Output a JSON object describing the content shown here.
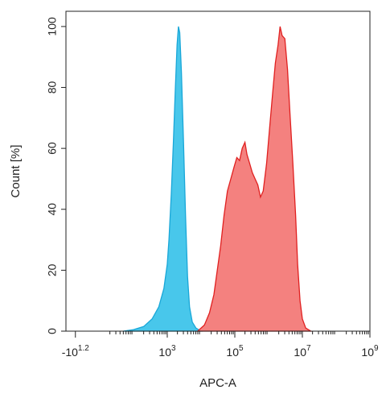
{
  "chart_data": {
    "type": "area",
    "xlabel": "APC-A",
    "ylabel": "Count [%]",
    "xscale": "log",
    "xlim_log10": [
      0,
      9
    ],
    "ylim": [
      0,
      105
    ],
    "grid": false,
    "x_ticks": [
      {
        "base": "-10",
        "exp": "1.2",
        "log10": 0.28
      },
      {
        "base": "10",
        "exp": "3",
        "log10": 3
      },
      {
        "base": "10",
        "exp": "5",
        "log10": 5
      },
      {
        "base": "10",
        "exp": "7",
        "log10": 7
      },
      {
        "base": "10",
        "exp": "9",
        "log10": 9
      }
    ],
    "y_ticks": [
      0,
      20,
      40,
      60,
      80,
      100
    ],
    "series": [
      {
        "fill": "#3ec4ea",
        "stroke": "#19a7d8",
        "points_log10": [
          [
            1.7,
            0
          ],
          [
            2.0,
            0.5
          ],
          [
            2.3,
            1.5
          ],
          [
            2.55,
            4
          ],
          [
            2.75,
            8
          ],
          [
            2.9,
            14
          ],
          [
            3.0,
            22
          ],
          [
            3.05,
            30
          ],
          [
            3.12,
            45
          ],
          [
            3.18,
            62
          ],
          [
            3.24,
            80
          ],
          [
            3.29,
            94
          ],
          [
            3.33,
            100
          ],
          [
            3.37,
            98
          ],
          [
            3.42,
            85
          ],
          [
            3.48,
            62
          ],
          [
            3.54,
            38
          ],
          [
            3.6,
            18
          ],
          [
            3.66,
            8
          ],
          [
            3.74,
            3
          ],
          [
            3.85,
            1
          ],
          [
            4.0,
            0
          ]
        ]
      },
      {
        "fill": "#f37a78",
        "stroke": "#e02020",
        "points_log10": [
          [
            3.9,
            0
          ],
          [
            4.1,
            2
          ],
          [
            4.25,
            6
          ],
          [
            4.38,
            12
          ],
          [
            4.48,
            20
          ],
          [
            4.58,
            28
          ],
          [
            4.68,
            38
          ],
          [
            4.78,
            46
          ],
          [
            4.88,
            50
          ],
          [
            4.98,
            54
          ],
          [
            5.06,
            57
          ],
          [
            5.14,
            56
          ],
          [
            5.22,
            60
          ],
          [
            5.3,
            62
          ],
          [
            5.36,
            58
          ],
          [
            5.44,
            55
          ],
          [
            5.52,
            52
          ],
          [
            5.6,
            50
          ],
          [
            5.68,
            48
          ],
          [
            5.76,
            44
          ],
          [
            5.84,
            46
          ],
          [
            5.94,
            55
          ],
          [
            6.04,
            68
          ],
          [
            6.12,
            78
          ],
          [
            6.2,
            88
          ],
          [
            6.28,
            94
          ],
          [
            6.34,
            100
          ],
          [
            6.4,
            97
          ],
          [
            6.48,
            96
          ],
          [
            6.56,
            86
          ],
          [
            6.64,
            70
          ],
          [
            6.72,
            55
          ],
          [
            6.8,
            38
          ],
          [
            6.86,
            22
          ],
          [
            6.93,
            10
          ],
          [
            7.0,
            4
          ],
          [
            7.1,
            1
          ],
          [
            7.25,
            0
          ]
        ]
      }
    ]
  }
}
